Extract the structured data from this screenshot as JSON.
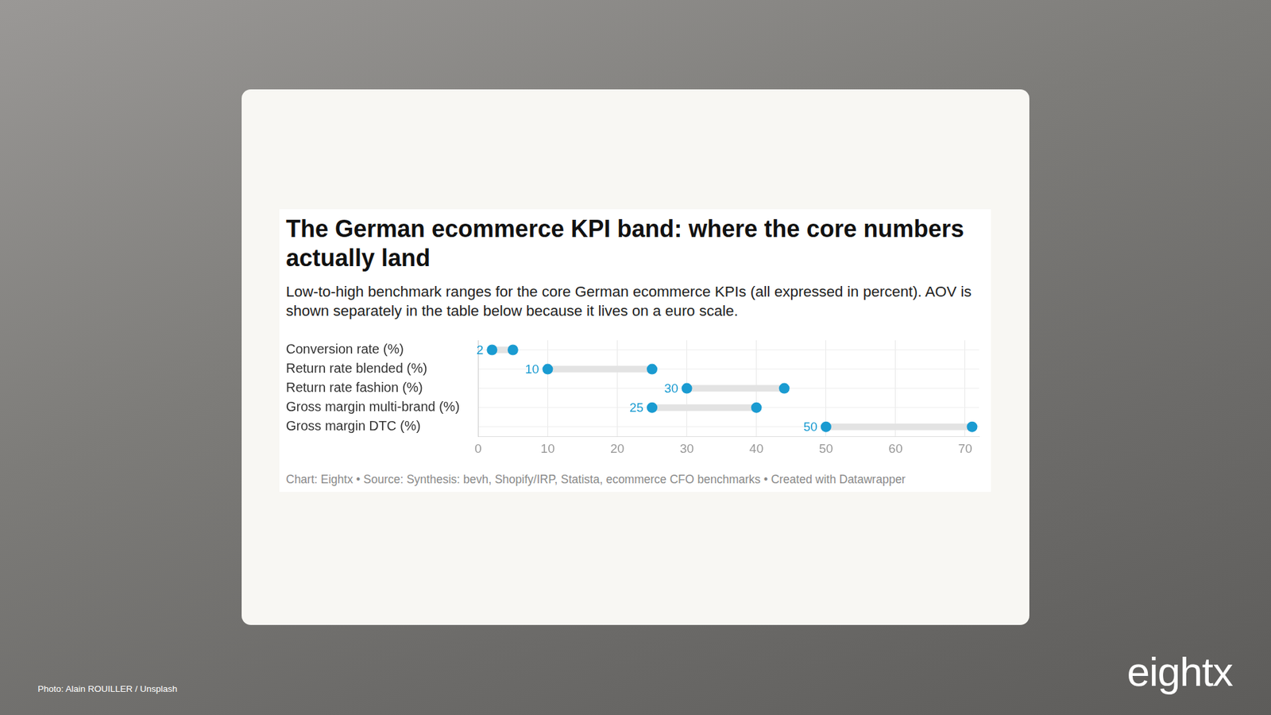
{
  "chart_data": {
    "type": "dumbbell",
    "title": "The German ecommerce KPI band: where the core numbers actually land",
    "subtitle": "Low-to-high benchmark ranges for the core German ecommerce KPIs (all expressed in percent). AOV is shown separately in the table below because it lives on a euro scale.",
    "source": "Chart: Eightx • Source: Synthesis: bevh, Shopify/IRP, Statista, ecommerce CFO benchmarks • Created with Datawrapper",
    "categories": [
      "Conversion rate (%)",
      "Return rate blended (%)",
      "Return rate fashion (%)",
      "Gross margin multi-brand (%)",
      "Gross margin DTC (%)"
    ],
    "low": [
      2,
      10,
      30,
      25,
      50
    ],
    "high": [
      5,
      25,
      44,
      40,
      71
    ],
    "color": "#1a9bd1",
    "orientation": "horizontal",
    "xlim": [
      0,
      72
    ],
    "xticks": [
      0,
      10,
      20,
      30,
      40,
      50,
      60,
      70
    ],
    "grid": true,
    "data_labels": true
  },
  "page": {
    "photo_credit": "Photo: Alain ROUILLER / Unsplash",
    "logo": "eightx"
  }
}
